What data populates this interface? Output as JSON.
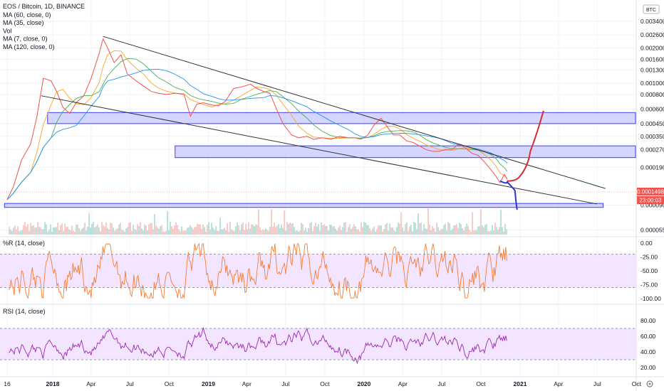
{
  "chart_data": {
    "type": "line",
    "title": "EOS / Bitcoin, 1D, BINANCE",
    "currency_badge": "BTC",
    "legend": [
      "MA (60, close, 0)",
      "MA (35, close)",
      "Vol",
      "MA (7, close, 0)",
      "MA (120, close, 0)"
    ],
    "price_axis": {
      "scale": "log",
      "ticks": [
        "0.0034000",
        "0.0026000",
        "0.0020000",
        "0.0016000",
        "0.0013000",
        "0.0010000",
        "0.0008000",
        "0.0006000",
        "0.0004500",
        "0.0003500",
        "0.0002700",
        "0.0001900",
        "0.0000900",
        "0.0000550"
      ],
      "top_label": "0.0034000"
    },
    "x_axis_labels": [
      "16",
      "2018",
      "Apr",
      "Jul",
      "Oct",
      "2019",
      "Apr",
      "Jul",
      "Oct",
      "2020",
      "Apr",
      "Jul",
      "Oct",
      "2021",
      "Apr",
      "Jul",
      "Oct"
    ],
    "last_price": "0.0001498",
    "countdown": "23:00:03",
    "price_series": [
      [
        "2017-09-16",
        0.0001
      ],
      [
        "2017-10-01",
        0.00013
      ],
      [
        "2017-10-20",
        0.00022
      ],
      [
        "2017-11-10",
        0.0003
      ],
      [
        "2017-11-25",
        0.00052
      ],
      [
        "2017-12-10",
        0.0011
      ],
      [
        "2017-12-28",
        0.00105
      ],
      [
        "2018-01-10",
        0.00085
      ],
      [
        "2018-01-25",
        0.00062
      ],
      [
        "2018-02-10",
        0.00055
      ],
      [
        "2018-02-25",
        0.00068
      ],
      [
        "2018-03-15",
        0.00078
      ],
      [
        "2018-04-01",
        0.0011
      ],
      [
        "2018-04-20",
        0.0018
      ],
      [
        "2018-04-29",
        0.0024
      ],
      [
        "2018-05-10",
        0.002
      ],
      [
        "2018-05-25",
        0.0015
      ],
      [
        "2018-06-10",
        0.00175
      ],
      [
        "2018-06-25",
        0.0012
      ],
      [
        "2018-07-15",
        0.00105
      ],
      [
        "2018-08-01",
        0.00095
      ],
      [
        "2018-08-20",
        0.00085
      ],
      [
        "2018-09-05",
        0.00082
      ],
      [
        "2018-09-25",
        0.0008
      ],
      [
        "2018-10-15",
        0.00082
      ],
      [
        "2018-11-05",
        0.0008
      ],
      [
        "2018-11-20",
        0.00052
      ],
      [
        "2018-12-05",
        0.00066
      ],
      [
        "2018-12-20",
        0.00068
      ],
      [
        "2019-01-10",
        0.00065
      ],
      [
        "2019-01-25",
        0.00064
      ],
      [
        "2019-02-10",
        0.0007
      ],
      [
        "2019-03-01",
        0.0009
      ],
      [
        "2019-03-20",
        0.00093
      ],
      [
        "2019-04-10",
        0.00098
      ],
      [
        "2019-04-25",
        0.0009
      ],
      [
        "2019-05-10",
        0.00085
      ],
      [
        "2019-05-25",
        0.00082
      ],
      [
        "2019-06-10",
        0.0006
      ],
      [
        "2019-06-25",
        0.00045
      ],
      [
        "2019-07-15",
        0.00036
      ],
      [
        "2019-08-01",
        0.00034
      ],
      [
        "2019-08-20",
        0.00035
      ],
      [
        "2019-09-05",
        0.00033
      ],
      [
        "2019-09-25",
        0.00034
      ],
      [
        "2019-10-15",
        0.00033
      ],
      [
        "2019-11-05",
        0.00035
      ],
      [
        "2019-11-25",
        0.00034
      ],
      [
        "2019-12-10",
        0.00034
      ],
      [
        "2019-12-25",
        0.00033
      ],
      [
        "2020-01-10",
        0.00036
      ],
      [
        "2020-01-25",
        0.00044
      ],
      [
        "2020-02-10",
        0.0005
      ],
      [
        "2020-02-25",
        0.00042
      ],
      [
        "2020-03-10",
        0.00036
      ],
      [
        "2020-03-25",
        0.00036
      ],
      [
        "2020-04-10",
        0.00032
      ],
      [
        "2020-04-25",
        0.00031
      ],
      [
        "2020-05-10",
        0.00029
      ],
      [
        "2020-05-25",
        0.00027
      ],
      [
        "2020-06-10",
        0.00026
      ],
      [
        "2020-06-25",
        0.00026
      ],
      [
        "2020-07-10",
        0.00027
      ],
      [
        "2020-07-25",
        0.00027
      ],
      [
        "2020-08-10",
        0.0003
      ],
      [
        "2020-08-25",
        0.00028
      ],
      [
        "2020-09-10",
        0.00025
      ],
      [
        "2020-09-25",
        0.00024
      ],
      [
        "2020-10-10",
        0.00021
      ],
      [
        "2020-10-25",
        0.00018
      ],
      [
        "2020-11-05",
        0.00016
      ],
      [
        "2020-11-15",
        0.00014
      ],
      [
        "2020-11-25",
        0.000165
      ],
      [
        "2020-12-02",
        0.0001498
      ]
    ],
    "channel_upper": [
      [
        "2018-04-29",
        0.00252
      ],
      [
        "2021-07-20",
        0.000125
      ]
    ],
    "channel_lower": [
      [
        "2017-12-05",
        0.00078
      ],
      [
        "2021-06-30",
        9.2e-05
      ]
    ],
    "zones": [
      {
        "from": "2017-12-20",
        "to": "2021-10-31",
        "low": 0.00045,
        "high": 0.00056
      },
      {
        "from": "2018-10-15",
        "to": "2021-10-31",
        "low": 0.00023,
        "high": 0.00029
      },
      {
        "from": "2017-09-10",
        "to": "2021-07-15",
        "low": 8.6e-05,
        "high": 9.3e-05
      }
    ],
    "projection_up": [
      [
        "2020-12-02",
        0.000145
      ],
      [
        "2021-01-01",
        0.00016
      ],
      [
        "2021-01-25",
        0.00026
      ],
      [
        "2021-02-25",
        0.00058
      ]
    ],
    "projection_down": [
      [
        "2020-11-15",
        0.000145
      ],
      [
        "2020-12-02",
        0.000142
      ],
      [
        "2020-12-20",
        0.00012
      ],
      [
        "2020-12-25",
        8.2e-05
      ]
    ],
    "williams_r": {
      "label": "%R (14, close)",
      "ticks": [
        "0.00",
        "-25.00",
        "-50.00",
        "-75.00",
        "-100.00"
      ],
      "upper_band": -20,
      "lower_band": -80,
      "ylim": [
        -100,
        0
      ]
    },
    "rsi": {
      "label": "RSI (14, close)",
      "ticks": [
        "80.00",
        "60.00",
        "40.00",
        "20.00"
      ],
      "upper_band": 70,
      "lower_band": 30,
      "ylim": [
        10,
        90
      ]
    }
  },
  "colors": {
    "price": "#ef5350",
    "price_up": "#26a69a",
    "zone_fill": "#c5c8ff",
    "zone_stroke": "#3d3dff",
    "projection_up": "#d62a34",
    "projection_down": "#2a36d6",
    "ma_short": "#f5a623",
    "ma_long": "#2196f3",
    "wr_line": "#f57c34",
    "rsi_line": "#9c27b0",
    "band_fill": "#f3e5ff",
    "price_badge": "#ef5350",
    "trend_line": "#333333"
  }
}
